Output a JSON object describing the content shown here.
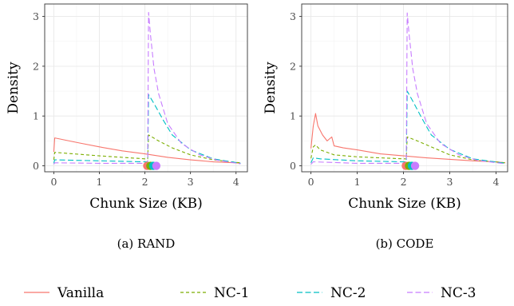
{
  "chart_data": [
    {
      "type": "line",
      "caption": "(a) RAND",
      "xlabel": "Chunk Size (KB)",
      "ylabel": "Density",
      "xlim": [
        -0.2,
        4.25
      ],
      "ylim": [
        -0.12,
        3.25
      ],
      "xticks": [
        0,
        1,
        2,
        3,
        4
      ],
      "yticks": [
        0,
        1,
        2,
        3
      ],
      "grid": true,
      "series": [
        {
          "name": "Vanilla",
          "values": [
            [
              0,
              0.28
            ],
            [
              0.02,
              0.56
            ],
            [
              0.5,
              0.47
            ],
            [
              1.0,
              0.38
            ],
            [
              1.5,
              0.3
            ],
            [
              2.0,
              0.24
            ],
            [
              2.5,
              0.17
            ],
            [
              3.0,
              0.12
            ],
            [
              3.5,
              0.08
            ],
            [
              4.0,
              0.06
            ],
            [
              4.1,
              0.05
            ]
          ]
        },
        {
          "name": "NC-1",
          "values": [
            [
              0,
              0.12
            ],
            [
              0.02,
              0.27
            ],
            [
              1.0,
              0.2
            ],
            [
              2.0,
              0.14
            ],
            [
              2.06,
              0.14
            ],
            [
              2.08,
              0.62
            ],
            [
              2.3,
              0.5
            ],
            [
              2.6,
              0.36
            ],
            [
              3.0,
              0.22
            ],
            [
              3.5,
              0.12
            ],
            [
              4.1,
              0.06
            ]
          ]
        },
        {
          "name": "NC-2",
          "values": [
            [
              0,
              0.05
            ],
            [
              0.02,
              0.12
            ],
            [
              1.0,
              0.1
            ],
            [
              2.0,
              0.08
            ],
            [
              2.06,
              0.08
            ],
            [
              2.08,
              1.43
            ],
            [
              2.2,
              1.25
            ],
            [
              2.4,
              0.92
            ],
            [
              2.6,
              0.62
            ],
            [
              3.0,
              0.32
            ],
            [
              3.5,
              0.14
            ],
            [
              4.1,
              0.05
            ]
          ]
        },
        {
          "name": "NC-3",
          "values": [
            [
              0,
              0.03
            ],
            [
              0.02,
              0.06
            ],
            [
              1.0,
              0.05
            ],
            [
              2.0,
              0.05
            ],
            [
              2.06,
              0.05
            ],
            [
              2.08,
              3.08
            ],
            [
              2.12,
              2.65
            ],
            [
              2.2,
              1.95
            ],
            [
              2.3,
              1.45
            ],
            [
              2.5,
              0.85
            ],
            [
              2.8,
              0.45
            ],
            [
              3.2,
              0.22
            ],
            [
              3.6,
              0.11
            ],
            [
              4.1,
              0.04
            ]
          ]
        }
      ],
      "means": [
        {
          "name": "Vanilla",
          "x": 2.05
        },
        {
          "name": "NC-1",
          "x": 2.12
        },
        {
          "name": "NC-2",
          "x": 2.18
        },
        {
          "name": "NC-3",
          "x": 2.25
        }
      ]
    },
    {
      "type": "line",
      "caption": "(b) CODE",
      "xlabel": "Chunk Size (KB)",
      "ylabel": "Density",
      "xlim": [
        -0.2,
        4.25
      ],
      "ylim": [
        -0.12,
        3.25
      ],
      "xticks": [
        0,
        1,
        2,
        3,
        4
      ],
      "yticks": [
        0,
        1,
        2,
        3
      ],
      "grid": true,
      "series": [
        {
          "name": "Vanilla",
          "values": [
            [
              0,
              0.35
            ],
            [
              0.05,
              0.8
            ],
            [
              0.1,
              1.05
            ],
            [
              0.15,
              0.8
            ],
            [
              0.25,
              0.62
            ],
            [
              0.35,
              0.5
            ],
            [
              0.45,
              0.58
            ],
            [
              0.5,
              0.4
            ],
            [
              0.7,
              0.36
            ],
            [
              1.0,
              0.32
            ],
            [
              1.5,
              0.24
            ],
            [
              2.0,
              0.2
            ],
            [
              2.5,
              0.16
            ],
            [
              3.0,
              0.13
            ],
            [
              3.5,
              0.1
            ],
            [
              4.0,
              0.08
            ],
            [
              4.2,
              0.06
            ]
          ]
        },
        {
          "name": "NC-1",
          "values": [
            [
              0,
              0.15
            ],
            [
              0.05,
              0.38
            ],
            [
              0.1,
              0.42
            ],
            [
              0.2,
              0.32
            ],
            [
              0.5,
              0.22
            ],
            [
              1.0,
              0.18
            ],
            [
              2.0,
              0.14
            ],
            [
              2.06,
              0.14
            ],
            [
              2.08,
              0.58
            ],
            [
              2.3,
              0.5
            ],
            [
              2.6,
              0.38
            ],
            [
              3.0,
              0.22
            ],
            [
              3.5,
              0.12
            ],
            [
              4.2,
              0.06
            ]
          ]
        },
        {
          "name": "NC-2",
          "values": [
            [
              0,
              0.06
            ],
            [
              0.05,
              0.16
            ],
            [
              0.2,
              0.14
            ],
            [
              1.0,
              0.1
            ],
            [
              2.0,
              0.08
            ],
            [
              2.06,
              0.08
            ],
            [
              2.08,
              1.5
            ],
            [
              2.2,
              1.3
            ],
            [
              2.4,
              0.95
            ],
            [
              2.6,
              0.62
            ],
            [
              3.0,
              0.33
            ],
            [
              3.5,
              0.14
            ],
            [
              4.2,
              0.05
            ]
          ]
        },
        {
          "name": "NC-3",
          "values": [
            [
              0,
              0.03
            ],
            [
              0.05,
              0.08
            ],
            [
              1.0,
              0.05
            ],
            [
              2.0,
              0.05
            ],
            [
              2.06,
              0.05
            ],
            [
              2.08,
              3.07
            ],
            [
              2.12,
              2.65
            ],
            [
              2.2,
              1.95
            ],
            [
              2.3,
              1.45
            ],
            [
              2.5,
              0.85
            ],
            [
              2.8,
              0.45
            ],
            [
              3.2,
              0.22
            ],
            [
              3.6,
              0.11
            ],
            [
              4.2,
              0.04
            ]
          ]
        }
      ],
      "means": [
        {
          "name": "Vanilla",
          "x": 2.05
        },
        {
          "name": "NC-1",
          "x": 2.12
        },
        {
          "name": "NC-2",
          "x": 2.18
        },
        {
          "name": "NC-3",
          "x": 2.25
        }
      ]
    }
  ],
  "legend": {
    "placement": "bottom",
    "items": [
      {
        "label": "Vanilla",
        "color": "#F8766D",
        "dash": "solid"
      },
      {
        "label": "NC-1",
        "color": "#7CAE00",
        "dash": "dashed"
      },
      {
        "label": "NC-2",
        "color": "#00BFC4",
        "dash": "longdash"
      },
      {
        "label": "NC-3",
        "color": "#C77CFF",
        "dash": "longdash"
      }
    ]
  },
  "style": {
    "panel_bg": "#ffffff",
    "grid_major": "#e8e8e8",
    "grid_minor": "#f3f3f3",
    "panel_border": "#333333"
  }
}
